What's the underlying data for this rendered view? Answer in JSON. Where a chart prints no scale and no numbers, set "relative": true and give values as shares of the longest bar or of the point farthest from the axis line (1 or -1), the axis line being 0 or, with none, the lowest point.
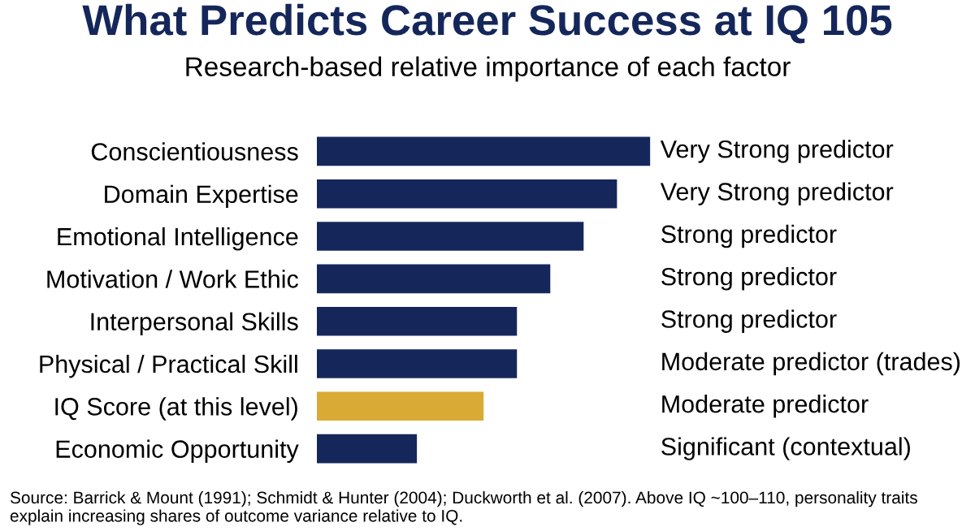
{
  "chart_data": {
    "type": "bar",
    "orientation": "horizontal",
    "relative": true,
    "title": "What Predicts Career Success at IQ 105",
    "subtitle": "Research-based relative importance of each factor",
    "categories": [
      "Conscientiousness",
      "Domain Expertise",
      "Emotional Intelligence",
      "Motivation / Work Ethic",
      "Interpersonal Skills",
      "Physical / Practical Skill",
      "IQ Score (at this level)",
      "Economic Opportunity"
    ],
    "values": [
      1.0,
      0.9,
      0.8,
      0.7,
      0.6,
      0.6,
      0.5,
      0.3
    ],
    "colors": [
      "#15275a",
      "#15275a",
      "#15275a",
      "#15275a",
      "#15275a",
      "#15275a",
      "#d9ab35",
      "#15275a"
    ],
    "annotations": [
      "Very Strong predictor",
      "Very Strong predictor",
      "Strong predictor",
      "Strong predictor",
      "Strong predictor",
      "Moderate predictor (trades)",
      "Moderate predictor",
      "Significant (contextual)",
      "Source: Barrick & Mount (1991); Schmidt & Hunter (2004); Duckworth et al. (2007). Above IQ ~100–110, personality traits explain increasing shares of outcome variance relative to IQ."
    ],
    "grid": false,
    "legend": false
  }
}
